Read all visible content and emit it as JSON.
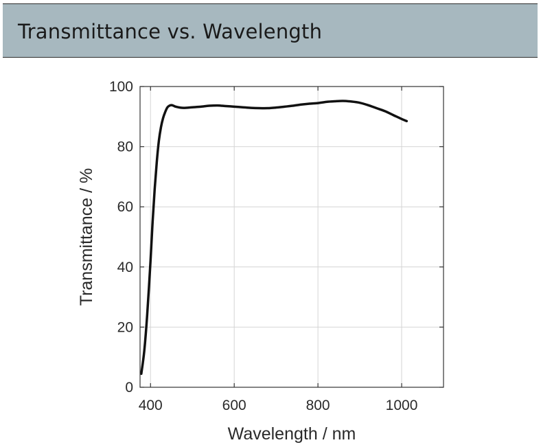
{
  "header": {
    "title": "Transmittance vs. Wavelength"
  },
  "chart_data": {
    "type": "line",
    "title": "",
    "xlabel": "Wavelength / nm",
    "ylabel": "Transmittance / %",
    "xlim": [
      375,
      1100
    ],
    "ylim": [
      0,
      100
    ],
    "xticks": [
      400,
      600,
      800,
      1000
    ],
    "yticks": [
      0,
      20,
      40,
      60,
      80,
      100
    ],
    "grid": true,
    "legend": "none",
    "colors": {
      "line": "#111111",
      "grid": "#d4d4d4",
      "axis": "#333333"
    },
    "series": [
      {
        "x": [
          378,
          385,
          392,
          400,
          405,
          410,
          415,
          420,
          425,
          430,
          435,
          440,
          445,
          450,
          455,
          460,
          470,
          480,
          500,
          520,
          540,
          560,
          580,
          600,
          620,
          640,
          660,
          680,
          700,
          720,
          740,
          760,
          780,
          800,
          820,
          840,
          860,
          880,
          900,
          920,
          940,
          960,
          980,
          1000,
          1012
        ],
        "y": [
          4.5,
          12,
          24,
          42,
          55,
          66,
          75,
          82,
          86.5,
          89.5,
          91.5,
          93,
          93.6,
          93.8,
          93.6,
          93.3,
          93.0,
          92.9,
          93.1,
          93.3,
          93.6,
          93.7,
          93.5,
          93.3,
          93.1,
          92.9,
          92.8,
          92.8,
          93.0,
          93.3,
          93.6,
          94.0,
          94.3,
          94.5,
          94.9,
          95.1,
          95.2,
          95.0,
          94.6,
          93.8,
          92.8,
          91.8,
          90.5,
          89.2,
          88.5
        ]
      }
    ]
  }
}
